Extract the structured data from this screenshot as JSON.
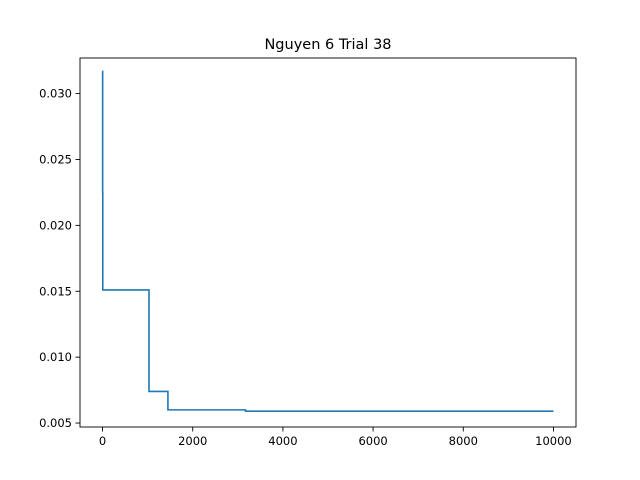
{
  "chart_data": {
    "type": "line",
    "title": "Nguyen 6 Trial 38",
    "xlabel": "",
    "ylabel": "",
    "xlim": [
      -500,
      10500
    ],
    "ylim": [
      0.0047,
      0.0327
    ],
    "x_ticks": [
      0,
      2000,
      4000,
      6000,
      8000,
      10000
    ],
    "x_tick_labels": [
      "0",
      "2000",
      "4000",
      "6000",
      "8000",
      "10000"
    ],
    "y_ticks": [
      0.005,
      0.01,
      0.015,
      0.02,
      0.025,
      0.03
    ],
    "y_tick_labels": [
      "0.005",
      "0.010",
      "0.015",
      "0.020",
      "0.025",
      "0.030"
    ],
    "grid": false,
    "legend": "none",
    "series": [
      {
        "color": "#1f77b4",
        "step": "post",
        "x": [
          0,
          2,
          5,
          1030,
          1450,
          3170,
          10000
        ],
        "y": [
          0.0317,
          0.0225,
          0.0151,
          0.0074,
          0.006,
          0.0059,
          0.0059
        ]
      }
    ]
  }
}
